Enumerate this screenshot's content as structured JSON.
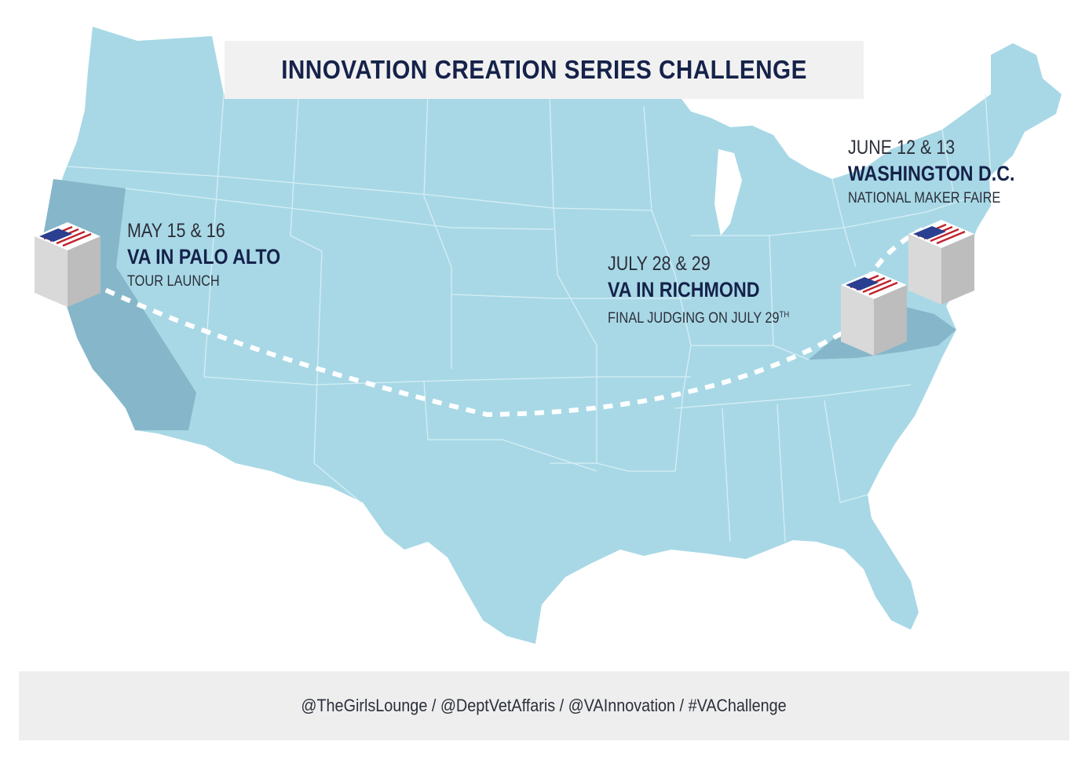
{
  "title": "INNOVATION CREATION SERIES CHALLENGE",
  "events": [
    {
      "date": "MAY 15 & 16",
      "place": "VA IN PALO ALTO",
      "note": "TOUR LAUNCH"
    },
    {
      "date": "JULY 28 & 29",
      "place": "VA IN RICHMOND",
      "note": "FINAL JUDGING ON JULY 29",
      "note_suffix": "TH"
    },
    {
      "date": "JUNE 12 & 13",
      "place": "WASHINGTON D.C.",
      "note": "NATIONAL MAKER FAIRE"
    }
  ],
  "footer": "@TheGirlsLounge / @DeptVetAffaris / @VAInnovation / #VAChallenge",
  "colors": {
    "land": "#a8d8e6",
    "highlight_state": "#86b6c9",
    "borders": "#d6eef5",
    "route": "#ffffff",
    "title_text": "#15224a",
    "panel": "#f1f1f1"
  },
  "markers": [
    "flag-box-icon",
    "flag-box-icon",
    "flag-box-icon"
  ]
}
